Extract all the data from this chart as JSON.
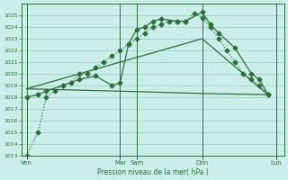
{
  "bg_color": "#cceee8",
  "grid_color": "#99ccbb",
  "line_color": "#2d6e3e",
  "xlabel": "Pression niveau de la mer( hPa )",
  "ylim": [
    1013,
    1026
  ],
  "xlim": [
    0,
    16
  ],
  "yticks": [
    1013,
    1014,
    1015,
    1016,
    1017,
    1018,
    1019,
    1020,
    1021,
    1022,
    1023,
    1024,
    1025
  ],
  "xtick_labels": [
    "Ven",
    "",
    "Mar",
    "Sam",
    "",
    "Dim",
    "",
    "Lun"
  ],
  "xtick_positions": [
    0.3,
    3,
    6,
    7,
    9,
    11,
    13,
    15.5
  ],
  "vlines": [
    0.3,
    6,
    7,
    11,
    15.5
  ],
  "series_dotted": {
    "x": [
      0.3,
      1.0,
      1.5,
      2.0,
      2.5,
      3.0,
      3.5,
      4.0,
      4.5,
      5.0,
      5.5,
      6.0,
      6.5,
      7.0,
      7.5,
      8.0,
      8.5,
      9.0,
      9.5,
      10.0,
      10.5,
      11.0,
      11.5,
      12.0,
      12.5,
      13.0,
      13.5,
      14.0,
      14.5,
      15.0
    ],
    "y": [
      1013,
      1015,
      1018,
      1018.5,
      1019,
      1019.2,
      1020,
      1020,
      1020.5,
      1021,
      1021.5,
      1022,
      1022.5,
      1023,
      1023.5,
      1024,
      1024.2,
      1024.5,
      1024.5,
      1024.5,
      1025.2,
      1024.8,
      1024,
      1023,
      1022,
      1021,
      1020,
      1019.5,
      1019,
      1018.2
    ],
    "marker": "D",
    "markersize": 2.5,
    "linewidth": 0.9,
    "linestyle": "dotted"
  },
  "series_solid_markers": {
    "x": [
      0.3,
      1.0,
      1.5,
      2.5,
      3.5,
      4.5,
      5.5,
      6.0,
      6.5,
      7.0,
      7.5,
      8.0,
      8.5,
      9.5,
      10.0,
      11.0,
      11.5,
      12.0,
      13.0,
      14.0,
      14.5,
      15.0
    ],
    "y": [
      1018,
      1018.2,
      1018.5,
      1019,
      1019.5,
      1019.8,
      1019,
      1019.2,
      1022.5,
      1023.8,
      1024,
      1024.5,
      1024.7,
      1024.5,
      1024.5,
      1025.3,
      1024.2,
      1023.5,
      1022.2,
      1020,
      1019.5,
      1018.2
    ],
    "marker": "D",
    "markersize": 2.5,
    "linewidth": 0.9,
    "linestyle": "solid"
  },
  "series_diagonal": {
    "x": [
      0.3,
      11.0,
      15.0
    ],
    "y": [
      1018.7,
      1023.0,
      1018.2
    ],
    "linewidth": 0.9,
    "linestyle": "solid"
  },
  "series_flat": {
    "x": [
      0.3,
      6.0,
      11.0,
      15.0
    ],
    "y": [
      1018.7,
      1018.5,
      1018.3,
      1018.2
    ],
    "linewidth": 0.9,
    "linestyle": "solid"
  }
}
